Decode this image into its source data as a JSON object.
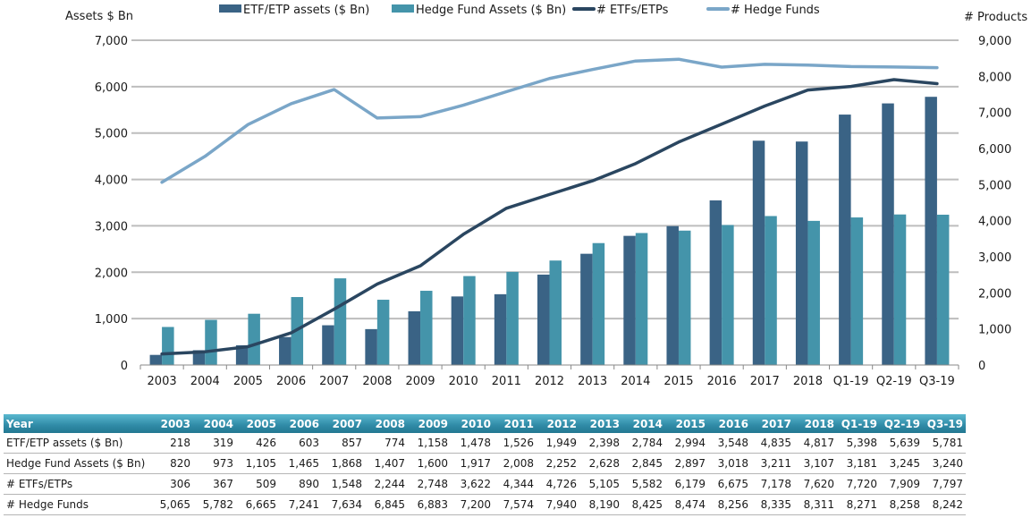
{
  "chart_data": {
    "type": "bar+line",
    "title": "",
    "categories": [
      "2003",
      "2004",
      "2005",
      "2006",
      "2007",
      "2008",
      "2009",
      "2010",
      "2011",
      "2012",
      "2013",
      "2014",
      "2015",
      "2016",
      "2017",
      "2018",
      "Q1-19",
      "Q2-19",
      "Q3-19"
    ],
    "left_axis": {
      "label": "Assets $ Bn",
      "range": [
        0,
        7000
      ],
      "ticks": [
        "0",
        "1,000",
        "2,000",
        "3,000",
        "4,000",
        "5,000",
        "6,000",
        "7,000"
      ],
      "gridlines": true
    },
    "right_axis": {
      "label": "# Products",
      "range": [
        0,
        9000
      ],
      "ticks": [
        "0",
        "1,000",
        "2,000",
        "3,000",
        "4,000",
        "5,000",
        "6,000",
        "7,000",
        "8,000",
        "9,000"
      ]
    },
    "legend_position": "top",
    "series": [
      {
        "name": "ETF/ETP assets ($ Bn)",
        "kind": "bar",
        "axis": "left",
        "color": "#3a6385",
        "values": [
          218,
          319,
          426,
          603,
          857,
          774,
          1158,
          1478,
          1526,
          1949,
          2398,
          2784,
          2994,
          3548,
          4835,
          4817,
          5398,
          5639,
          5781
        ]
      },
      {
        "name": "Hedge Fund Assets ($ Bn)",
        "kind": "bar",
        "axis": "left",
        "color": "#4494aa",
        "values": [
          820,
          973,
          1105,
          1465,
          1868,
          1407,
          1600,
          1917,
          2008,
          2252,
          2628,
          2845,
          2897,
          3018,
          3211,
          3107,
          3181,
          3245,
          3240
        ]
      },
      {
        "name": "# ETFs/ETPs",
        "kind": "line",
        "axis": "right",
        "color": "#2a4660",
        "values": [
          306,
          367,
          509,
          890,
          1548,
          2244,
          2748,
          3622,
          4344,
          4726,
          5105,
          5582,
          6179,
          6675,
          7178,
          7620,
          7720,
          7909,
          7797
        ]
      },
      {
        "name": "# Hedge Funds",
        "kind": "line",
        "axis": "right",
        "color": "#7aa6c8",
        "values": [
          5065,
          5782,
          6665,
          7241,
          7634,
          6845,
          6883,
          7200,
          7574,
          7940,
          8190,
          8425,
          8474,
          8256,
          8335,
          8311,
          8271,
          8258,
          8242
        ]
      }
    ]
  },
  "table": {
    "header_label": "Year",
    "columns": [
      "2003",
      "2004",
      "2005",
      "2006",
      "2007",
      "2008",
      "2009",
      "2010",
      "2011",
      "2012",
      "2013",
      "2014",
      "2015",
      "2016",
      "2017",
      "2018",
      "Q1-19",
      "Q2-19",
      "Q3-19"
    ],
    "rows": [
      {
        "label": "ETF/ETP assets ($ Bn)",
        "values": [
          "218",
          "319",
          "426",
          "603",
          "857",
          "774",
          "1,158",
          "1,478",
          "1,526",
          "1,949",
          "2,398",
          "2,784",
          "2,994",
          "3,548",
          "4,835",
          "4,817",
          "5,398",
          "5,639",
          "5,781"
        ]
      },
      {
        "label": "Hedge Fund Assets ($ Bn)",
        "values": [
          "820",
          "973",
          "1,105",
          "1,465",
          "1,868",
          "1,407",
          "1,600",
          "1,917",
          "2,008",
          "2,252",
          "2,628",
          "2,845",
          "2,897",
          "3,018",
          "3,211",
          "3,107",
          "3,181",
          "3,245",
          "3,240"
        ]
      },
      {
        "label": "# ETFs/ETPs",
        "values": [
          "306",
          "367",
          "509",
          "890",
          "1,548",
          "2,244",
          "2,748",
          "3,622",
          "4,344",
          "4,726",
          "5,105",
          "5,582",
          "6,179",
          "6,675",
          "7,178",
          "7,620",
          "7,720",
          "7,909",
          "7,797"
        ]
      },
      {
        "label": "# Hedge Funds",
        "values": [
          "5,065",
          "5,782",
          "6,665",
          "7,241",
          "7,634",
          "6,845",
          "6,883",
          "7,200",
          "7,574",
          "7,940",
          "8,190",
          "8,425",
          "8,474",
          "8,256",
          "8,335",
          "8,311",
          "8,271",
          "8,258",
          "8,242"
        ]
      }
    ]
  }
}
